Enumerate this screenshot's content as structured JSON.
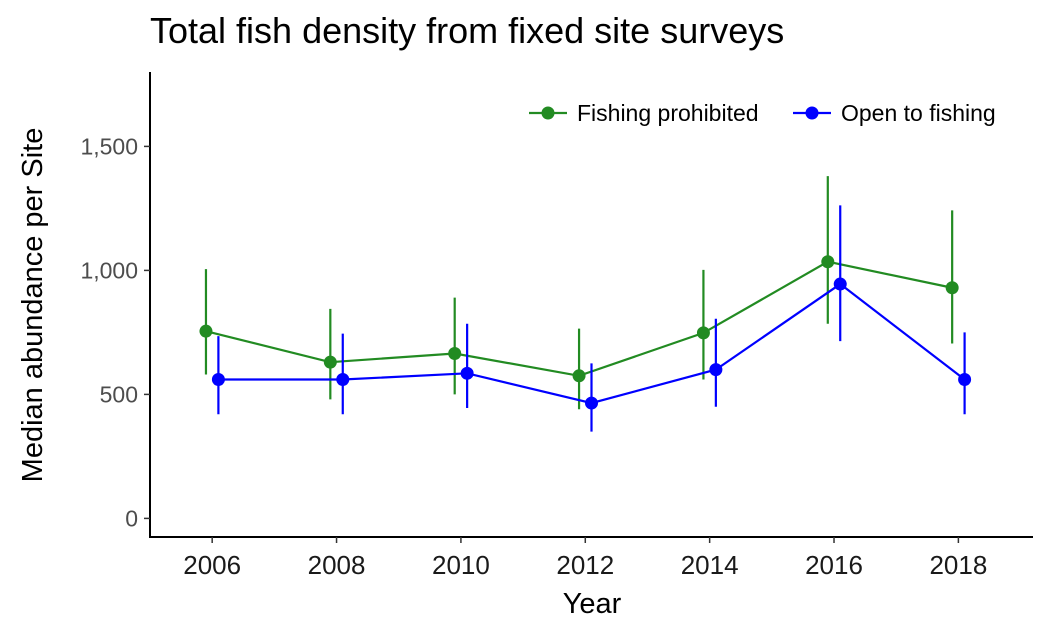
{
  "chart_data": {
    "type": "line",
    "title": "Total fish density from fixed site surveys",
    "xlabel": "Year",
    "ylabel": "Median abundance per Site",
    "x": [
      2006,
      2008,
      2010,
      2012,
      2014,
      2016,
      2018
    ],
    "x_tick_labels": [
      "2006",
      "2008",
      "2010",
      "2012",
      "2014",
      "2016",
      "2018"
    ],
    "xlim": [
      2005,
      2019.2
    ],
    "ylim": [
      -75,
      1800
    ],
    "y_ticks": [
      0,
      500,
      1000,
      1500
    ],
    "y_tick_labels": [
      "0",
      "500",
      "1,000",
      "1,500"
    ],
    "grid": false,
    "legend_position": "top-right",
    "series": [
      {
        "name": "Fishing prohibited",
        "color": "#228B22",
        "values": [
          755,
          630,
          665,
          575,
          748,
          1035,
          930
        ],
        "lower": [
          580,
          480,
          500,
          440,
          560,
          785,
          705
        ],
        "upper": [
          1005,
          845,
          890,
          765,
          1002,
          1380,
          1242
        ]
      },
      {
        "name": "Open to fishing",
        "color": "#0000FF",
        "values": [
          560,
          560,
          585,
          465,
          600,
          945,
          560
        ],
        "lower": [
          420,
          420,
          445,
          350,
          450,
          715,
          420
        ],
        "upper": [
          735,
          745,
          785,
          625,
          805,
          1262,
          750
        ]
      }
    ]
  }
}
